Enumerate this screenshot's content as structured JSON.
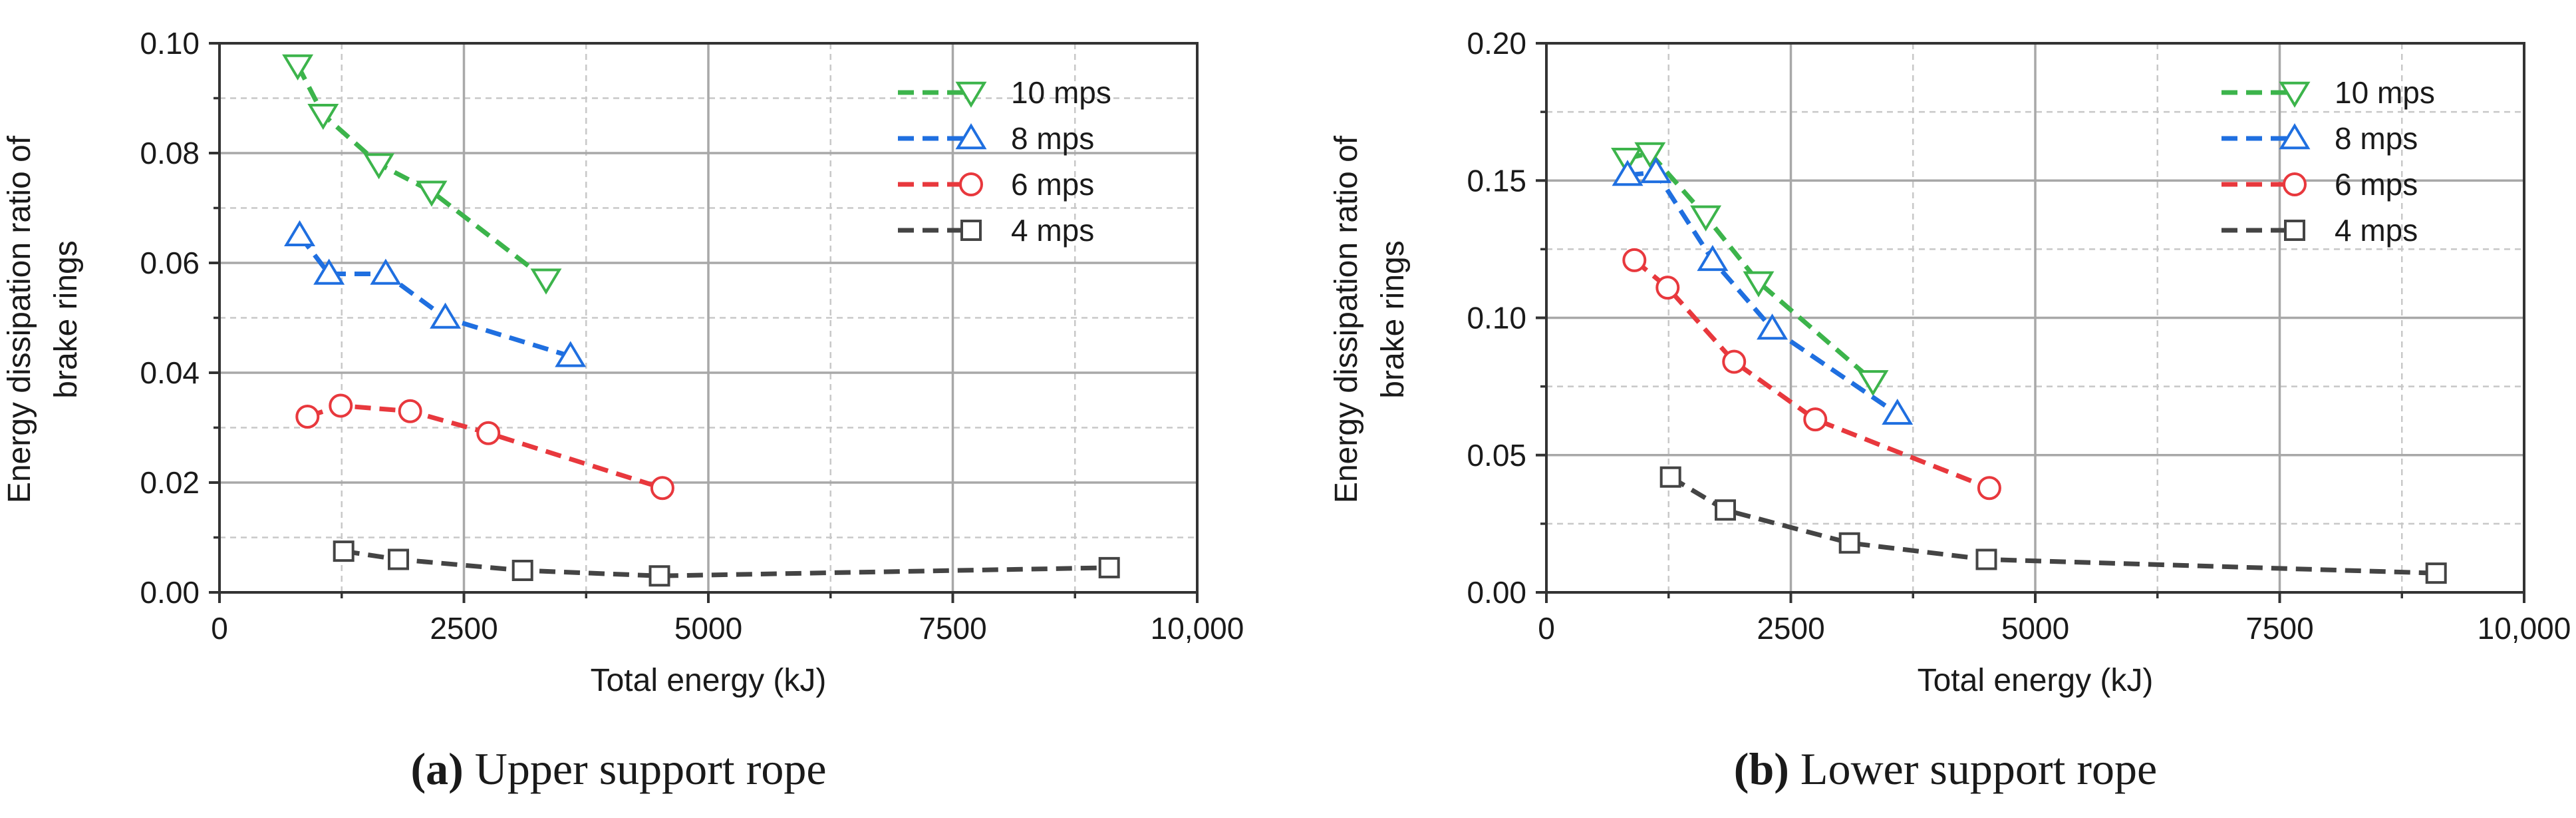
{
  "chart_data": [
    {
      "type": "line",
      "caption_letter": "(a)",
      "caption_text": " Upper support rope",
      "xlabel": "Total energy (kJ)",
      "ylabel": [
        "Energy dissipation ratio of",
        "brake rings"
      ],
      "xlim": [
        0,
        10000
      ],
      "ylim": [
        0,
        0.1
      ],
      "x_ticks": [
        0,
        2500,
        5000,
        7500,
        10000
      ],
      "x_tick_labels": [
        "0",
        "2500",
        "5000",
        "7500",
        "10,000"
      ],
      "y_ticks": [
        0,
        0.02,
        0.04,
        0.06,
        0.08,
        0.1
      ],
      "y_tick_labels": [
        "0.00",
        "0.02",
        "0.04",
        "0.06",
        "0.08",
        "0.10"
      ],
      "grid": true,
      "legend_position": "top-right",
      "series": [
        {
          "name": "10 mps",
          "color": "#3cb44b",
          "marker": "triangle-down",
          "x": [
            800,
            1060,
            1630,
            2170,
            3340
          ],
          "y": [
            0.096,
            0.087,
            0.078,
            0.073,
            0.057
          ]
        },
        {
          "name": "8 mps",
          "color": "#1f6fe0",
          "marker": "triangle-up",
          "x": [
            820,
            1120,
            1700,
            2310,
            3590
          ],
          "y": [
            0.065,
            0.058,
            0.058,
            0.05,
            0.043
          ]
        },
        {
          "name": "6 mps",
          "color": "#e8383d",
          "marker": "circle",
          "x": [
            900,
            1240,
            1950,
            2750,
            4530
          ],
          "y": [
            0.032,
            0.034,
            0.033,
            0.029,
            0.019
          ]
        },
        {
          "name": "4 mps",
          "color": "#444444",
          "marker": "square",
          "x": [
            1270,
            1830,
            3100,
            4500,
            9100
          ],
          "y": [
            0.0075,
            0.006,
            0.004,
            0.003,
            0.0045
          ]
        }
      ]
    },
    {
      "type": "line",
      "caption_letter": "(b)",
      "caption_text": " Lower support rope",
      "xlabel": "Total energy (kJ)",
      "ylabel": [
        "Energy dissipation ratio of",
        "brake rings"
      ],
      "xlim": [
        0,
        10000
      ],
      "ylim": [
        0,
        0.2
      ],
      "x_ticks": [
        0,
        2500,
        5000,
        7500,
        10000
      ],
      "x_tick_labels": [
        "0",
        "2500",
        "5000",
        "7500",
        "10,000"
      ],
      "y_ticks": [
        0,
        0.05,
        0.1,
        0.15,
        0.2
      ],
      "y_tick_labels": [
        "0.00",
        "0.05",
        "0.10",
        "0.15",
        "0.20"
      ],
      "grid": true,
      "legend_position": "top-right",
      "series": [
        {
          "name": "10 mps",
          "color": "#3cb44b",
          "marker": "triangle-down",
          "x": [
            820,
            1060,
            1630,
            2170,
            3340
          ],
          "y": [
            0.158,
            0.16,
            0.137,
            0.113,
            0.077
          ]
        },
        {
          "name": "8 mps",
          "color": "#1f6fe0",
          "marker": "triangle-up",
          "x": [
            830,
            1120,
            1700,
            2310,
            3590
          ],
          "y": [
            0.152,
            0.153,
            0.121,
            0.096,
            0.065
          ]
        },
        {
          "name": "6 mps",
          "color": "#e8383d",
          "marker": "circle",
          "x": [
            900,
            1240,
            1920,
            2750,
            4530
          ],
          "y": [
            0.121,
            0.111,
            0.084,
            0.063,
            0.038
          ]
        },
        {
          "name": "4 mps",
          "color": "#444444",
          "marker": "square",
          "x": [
            1270,
            1830,
            3100,
            4500,
            9100
          ],
          "y": [
            0.042,
            0.03,
            0.018,
            0.012,
            0.007
          ]
        }
      ]
    }
  ]
}
